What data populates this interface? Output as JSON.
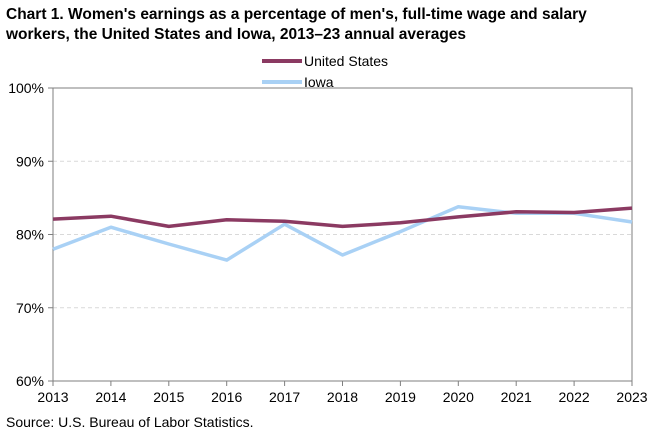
{
  "chart_data": {
    "type": "line",
    "title_line1": "Chart 1. Women's earnings as a percentage of men's, full-time wage and salary",
    "title_line2": "workers, the United States and Iowa, 2013–23 annual averages",
    "x": [
      "2013",
      "2014",
      "2015",
      "2016",
      "2017",
      "2018",
      "2019",
      "2020",
      "2021",
      "2022",
      "2023"
    ],
    "y_ticks": [
      "60%",
      "70%",
      "80%",
      "90%",
      "100%"
    ],
    "ylim": [
      60,
      100
    ],
    "grid": true,
    "legend_position": "top-center",
    "series": [
      {
        "name": "United States",
        "color": "#8b3a62",
        "values": [
          82.1,
          82.5,
          81.1,
          82.0,
          81.8,
          81.1,
          81.6,
          82.4,
          83.1,
          83.0,
          83.6
        ]
      },
      {
        "name": "Iowa",
        "color": "#a9d1f5",
        "values": [
          78.0,
          81.0,
          78.7,
          76.5,
          81.4,
          77.2,
          80.4,
          83.8,
          82.9,
          82.9,
          81.7
        ]
      }
    ],
    "source": "Source:  U.S. Bureau of Labor Statistics."
  }
}
